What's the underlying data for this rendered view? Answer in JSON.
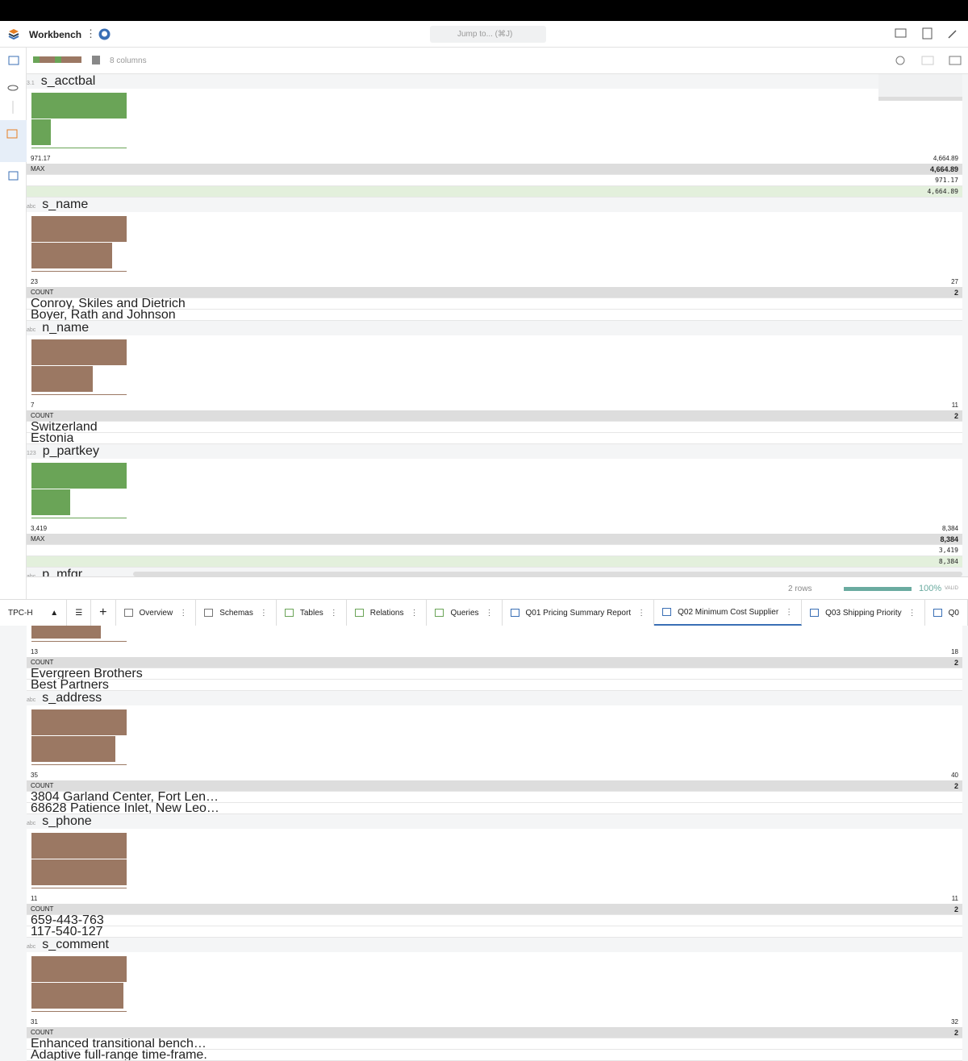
{
  "header": {
    "title": "Workbench",
    "search": "Jump to... (⌘J)"
  },
  "toolbar": {
    "columns_label": "8 columns"
  },
  "table": {
    "columns": [
      {
        "type": "3.1",
        "name": "s_acctbal",
        "min": "971.17",
        "max": "4,664.89",
        "stat_label": "MAX",
        "stat_value": "4,664.89",
        "rows": [
          "971.17",
          "4,664.89"
        ],
        "numeric": true
      },
      {
        "type": "abc",
        "name": "s_name",
        "min": "23",
        "max": "27",
        "stat_label": "COUNT",
        "stat_value": "2",
        "rows": [
          "Conroy, Skiles and Dietrich",
          "Boyer, Rath and Johnson"
        ],
        "numeric": false
      },
      {
        "type": "abc",
        "name": "n_name",
        "min": "7",
        "max": "11",
        "stat_label": "COUNT",
        "stat_value": "2",
        "rows": [
          "Switzerland",
          "Estonia"
        ],
        "numeric": false
      },
      {
        "type": "123",
        "name": "p_partkey",
        "min": "3,419",
        "max": "8,384",
        "stat_label": "MAX",
        "stat_value": "8,384",
        "rows": [
          "3,419",
          "8,384"
        ],
        "numeric": true
      },
      {
        "type": "abc",
        "name": "p_mfgr",
        "min": "13",
        "max": "18",
        "stat_label": "COUNT",
        "stat_value": "2",
        "rows": [
          "Evergreen Brothers",
          "Best Partners"
        ],
        "numeric": false
      },
      {
        "type": "abc",
        "name": "s_address",
        "min": "35",
        "max": "40",
        "stat_label": "COUNT",
        "stat_value": "2",
        "rows": [
          "3804 Garland Center, Fort Len…",
          "68628 Patience Inlet, New Leo…"
        ],
        "numeric": false
      },
      {
        "type": "abc",
        "name": "s_phone",
        "min": "11",
        "max": "11",
        "stat_label": "COUNT",
        "stat_value": "2",
        "rows": [
          "659-443-763",
          "117-540-127"
        ],
        "numeric": false
      },
      {
        "type": "abc",
        "name": "s_comment",
        "min": "31",
        "max": "32",
        "stat_label": "COUNT",
        "stat_value": "2",
        "rows": [
          "Enhanced transitional bench…",
          "Adaptive full-range time-frame."
        ],
        "numeric": false
      }
    ]
  },
  "status": {
    "rows": "2 rows",
    "percent": "100%",
    "valid": "VALID"
  },
  "tabs": {
    "workspace": "TPC-H",
    "items": [
      "Overview",
      "Schemas",
      "Tables",
      "Relations",
      "Queries",
      "Q01 Pricing Summary Report",
      "Q02 Minimum Cost Supplier",
      "Q03 Shipping Priority",
      "Q0"
    ]
  }
}
